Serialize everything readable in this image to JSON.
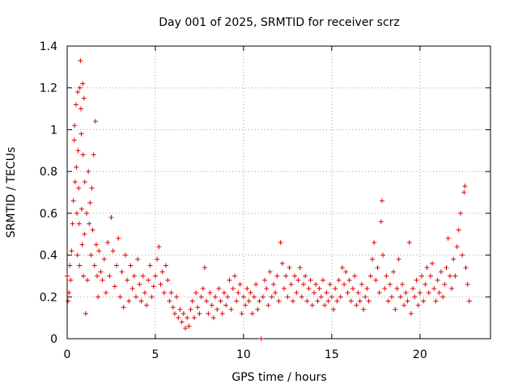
{
  "chart_data": {
    "type": "scatter",
    "title": "Day 001 of 2025, SRMTID for receiver scrz",
    "xlabel": "GPS time / hours",
    "ylabel": "SRMTID / TECUs",
    "xlim": [
      0,
      24
    ],
    "ylim": [
      0,
      1.4
    ],
    "xticks": [
      "0",
      "5",
      "10",
      "15",
      "20"
    ],
    "yticks": [
      "0",
      "0.2",
      "0.4",
      "0.6",
      "0.8",
      "1",
      "1.2",
      "1.4"
    ],
    "grid": true,
    "marker": "+",
    "marker_color": "#e00000",
    "series": [
      {
        "name": "SRMTID",
        "points": [
          [
            0.0,
            0.3
          ],
          [
            0.05,
            0.18
          ],
          [
            0.1,
            0.22
          ],
          [
            0.15,
            0.35
          ],
          [
            0.2,
            0.28
          ],
          [
            0.25,
            0.42
          ],
          [
            0.3,
            0.55
          ],
          [
            0.35,
            0.66
          ],
          [
            0.4,
            0.95
          ],
          [
            0.42,
            1.02
          ],
          [
            0.45,
            0.75
          ],
          [
            0.5,
            1.12
          ],
          [
            0.52,
            0.82
          ],
          [
            0.55,
            0.6
          ],
          [
            0.58,
            0.4
          ],
          [
            0.6,
            1.18
          ],
          [
            0.62,
            0.9
          ],
          [
            0.65,
            0.72
          ],
          [
            0.68,
            0.55
          ],
          [
            0.7,
            0.35
          ],
          [
            0.72,
            1.2
          ],
          [
            0.75,
            1.33
          ],
          [
            0.78,
            1.1
          ],
          [
            0.8,
            0.98
          ],
          [
            0.82,
            0.62
          ],
          [
            0.85,
            0.45
          ],
          [
            0.88,
            1.22
          ],
          [
            0.9,
            0.88
          ],
          [
            0.92,
            0.3
          ],
          [
            0.95,
            1.15
          ],
          [
            0.98,
            0.5
          ],
          [
            1.0,
            0.75
          ],
          [
            1.05,
            0.12
          ],
          [
            1.1,
            0.6
          ],
          [
            1.15,
            0.28
          ],
          [
            1.2,
            0.8
          ],
          [
            1.25,
            0.55
          ],
          [
            1.3,
            0.65
          ],
          [
            1.35,
            0.4
          ],
          [
            1.4,
            0.72
          ],
          [
            1.45,
            0.52
          ],
          [
            1.5,
            0.88
          ],
          [
            1.55,
            0.35
          ],
          [
            1.6,
            1.04
          ],
          [
            1.65,
            0.45
          ],
          [
            1.7,
            0.3
          ],
          [
            1.75,
            0.2
          ],
          [
            1.8,
            0.42
          ],
          [
            1.9,
            0.32
          ],
          [
            2.0,
            0.28
          ],
          [
            2.1,
            0.38
          ],
          [
            2.2,
            0.22
          ],
          [
            2.3,
            0.46
          ],
          [
            2.4,
            0.3
          ],
          [
            2.5,
            0.58
          ],
          [
            2.6,
            0.42
          ],
          [
            2.7,
            0.25
          ],
          [
            2.8,
            0.35
          ],
          [
            2.9,
            0.48
          ],
          [
            3.0,
            0.2
          ],
          [
            3.1,
            0.32
          ],
          [
            3.2,
            0.15
          ],
          [
            3.3,
            0.4
          ],
          [
            3.4,
            0.28
          ],
          [
            3.5,
            0.18
          ],
          [
            3.6,
            0.35
          ],
          [
            3.7,
            0.24
          ],
          [
            3.8,
            0.3
          ],
          [
            3.9,
            0.2
          ],
          [
            4.0,
            0.38
          ],
          [
            4.1,
            0.26
          ],
          [
            4.2,
            0.18
          ],
          [
            4.3,
            0.3
          ],
          [
            4.4,
            0.22
          ],
          [
            4.5,
            0.16
          ],
          [
            4.6,
            0.28
          ],
          [
            4.7,
            0.35
          ],
          [
            4.8,
            0.2
          ],
          [
            4.9,
            0.25
          ],
          [
            5.0,
            0.3
          ],
          [
            5.1,
            0.38
          ],
          [
            5.2,
            0.44
          ],
          [
            5.3,
            0.26
          ],
          [
            5.4,
            0.32
          ],
          [
            5.5,
            0.22
          ],
          [
            5.6,
            0.35
          ],
          [
            5.7,
            0.28
          ],
          [
            5.8,
            0.18
          ],
          [
            5.9,
            0.22
          ],
          [
            6.0,
            0.15
          ],
          [
            6.1,
            0.12
          ],
          [
            6.2,
            0.2
          ],
          [
            6.3,
            0.1
          ],
          [
            6.4,
            0.14
          ],
          [
            6.5,
            0.08
          ],
          [
            6.6,
            0.12
          ],
          [
            6.7,
            0.05
          ],
          [
            6.8,
            0.1
          ],
          [
            6.9,
            0.06
          ],
          [
            7.0,
            0.14
          ],
          [
            7.1,
            0.18
          ],
          [
            7.2,
            0.1
          ],
          [
            7.3,
            0.22
          ],
          [
            7.4,
            0.15
          ],
          [
            7.5,
            0.12
          ],
          [
            7.6,
            0.2
          ],
          [
            7.7,
            0.24
          ],
          [
            7.8,
            0.34
          ],
          [
            7.9,
            0.18
          ],
          [
            8.0,
            0.12
          ],
          [
            8.1,
            0.22
          ],
          [
            8.2,
            0.16
          ],
          [
            8.3,
            0.1
          ],
          [
            8.4,
            0.2
          ],
          [
            8.5,
            0.14
          ],
          [
            8.6,
            0.24
          ],
          [
            8.7,
            0.18
          ],
          [
            8.8,
            0.12
          ],
          [
            8.9,
            0.22
          ],
          [
            9.0,
            0.16
          ],
          [
            9.1,
            0.2
          ],
          [
            9.2,
            0.28
          ],
          [
            9.3,
            0.14
          ],
          [
            9.4,
            0.24
          ],
          [
            9.5,
            0.3
          ],
          [
            9.6,
            0.18
          ],
          [
            9.7,
            0.22
          ],
          [
            9.8,
            0.26
          ],
          [
            9.9,
            0.12
          ],
          [
            10.0,
            0.2
          ],
          [
            10.1,
            0.16
          ],
          [
            10.2,
            0.24
          ],
          [
            10.3,
            0.18
          ],
          [
            10.4,
            0.22
          ],
          [
            10.5,
            0.12
          ],
          [
            10.6,
            0.2
          ],
          [
            10.7,
            0.26
          ],
          [
            10.8,
            0.14
          ],
          [
            10.9,
            0.18
          ],
          [
            11.0,
            0.0
          ],
          [
            11.1,
            0.2
          ],
          [
            11.2,
            0.28
          ],
          [
            11.3,
            0.24
          ],
          [
            11.4,
            0.16
          ],
          [
            11.5,
            0.32
          ],
          [
            11.6,
            0.2
          ],
          [
            11.7,
            0.26
          ],
          [
            11.8,
            0.22
          ],
          [
            11.9,
            0.3
          ],
          [
            12.0,
            0.18
          ],
          [
            12.1,
            0.46
          ],
          [
            12.2,
            0.36
          ],
          [
            12.3,
            0.24
          ],
          [
            12.4,
            0.3
          ],
          [
            12.5,
            0.2
          ],
          [
            12.6,
            0.34
          ],
          [
            12.7,
            0.26
          ],
          [
            12.8,
            0.18
          ],
          [
            12.9,
            0.3
          ],
          [
            13.0,
            0.22
          ],
          [
            13.1,
            0.28
          ],
          [
            13.2,
            0.34
          ],
          [
            13.3,
            0.2
          ],
          [
            13.4,
            0.26
          ],
          [
            13.5,
            0.3
          ],
          [
            13.6,
            0.18
          ],
          [
            13.7,
            0.24
          ],
          [
            13.8,
            0.28
          ],
          [
            13.9,
            0.16
          ],
          [
            14.0,
            0.22
          ],
          [
            14.1,
            0.26
          ],
          [
            14.2,
            0.18
          ],
          [
            14.3,
            0.24
          ],
          [
            14.4,
            0.2
          ],
          [
            14.5,
            0.28
          ],
          [
            14.6,
            0.16
          ],
          [
            14.7,
            0.22
          ],
          [
            14.8,
            0.18
          ],
          [
            14.9,
            0.26
          ],
          [
            15.0,
            0.2
          ],
          [
            15.1,
            0.14
          ],
          [
            15.2,
            0.24
          ],
          [
            15.3,
            0.18
          ],
          [
            15.4,
            0.28
          ],
          [
            15.5,
            0.2
          ],
          [
            15.6,
            0.34
          ],
          [
            15.7,
            0.26
          ],
          [
            15.8,
            0.32
          ],
          [
            15.9,
            0.22
          ],
          [
            16.0,
            0.28
          ],
          [
            16.1,
            0.18
          ],
          [
            16.2,
            0.24
          ],
          [
            16.3,
            0.3
          ],
          [
            16.4,
            0.16
          ],
          [
            16.5,
            0.22
          ],
          [
            16.6,
            0.18
          ],
          [
            16.7,
            0.26
          ],
          [
            16.8,
            0.14
          ],
          [
            16.9,
            0.2
          ],
          [
            17.0,
            0.24
          ],
          [
            17.1,
            0.18
          ],
          [
            17.2,
            0.3
          ],
          [
            17.3,
            0.38
          ],
          [
            17.4,
            0.46
          ],
          [
            17.5,
            0.28
          ],
          [
            17.6,
            0.34
          ],
          [
            17.7,
            0.22
          ],
          [
            17.8,
            0.56
          ],
          [
            17.85,
            0.66
          ],
          [
            17.9,
            0.4
          ],
          [
            18.0,
            0.24
          ],
          [
            18.1,
            0.3
          ],
          [
            18.2,
            0.18
          ],
          [
            18.3,
            0.26
          ],
          [
            18.4,
            0.2
          ],
          [
            18.5,
            0.32
          ],
          [
            18.6,
            0.14
          ],
          [
            18.7,
            0.24
          ],
          [
            18.8,
            0.38
          ],
          [
            18.9,
            0.2
          ],
          [
            19.0,
            0.26
          ],
          [
            19.1,
            0.16
          ],
          [
            19.2,
            0.22
          ],
          [
            19.3,
            0.18
          ],
          [
            19.4,
            0.46
          ],
          [
            19.5,
            0.12
          ],
          [
            19.6,
            0.24
          ],
          [
            19.7,
            0.2
          ],
          [
            19.8,
            0.28
          ],
          [
            19.9,
            0.16
          ],
          [
            20.0,
            0.22
          ],
          [
            20.1,
            0.3
          ],
          [
            20.2,
            0.18
          ],
          [
            20.3,
            0.26
          ],
          [
            20.4,
            0.34
          ],
          [
            20.5,
            0.22
          ],
          [
            20.6,
            0.3
          ],
          [
            20.7,
            0.36
          ],
          [
            20.8,
            0.24
          ],
          [
            20.9,
            0.18
          ],
          [
            21.0,
            0.28
          ],
          [
            21.1,
            0.22
          ],
          [
            21.2,
            0.32
          ],
          [
            21.3,
            0.2
          ],
          [
            21.4,
            0.26
          ],
          [
            21.5,
            0.34
          ],
          [
            21.6,
            0.48
          ],
          [
            21.7,
            0.3
          ],
          [
            21.8,
            0.24
          ],
          [
            21.9,
            0.38
          ],
          [
            22.0,
            0.3
          ],
          [
            22.1,
            0.44
          ],
          [
            22.2,
            0.52
          ],
          [
            22.3,
            0.6
          ],
          [
            22.4,
            0.4
          ],
          [
            22.5,
            0.7
          ],
          [
            22.55,
            0.73
          ],
          [
            22.6,
            0.34
          ],
          [
            22.7,
            0.26
          ],
          [
            22.8,
            0.18
          ]
        ]
      }
    ]
  }
}
